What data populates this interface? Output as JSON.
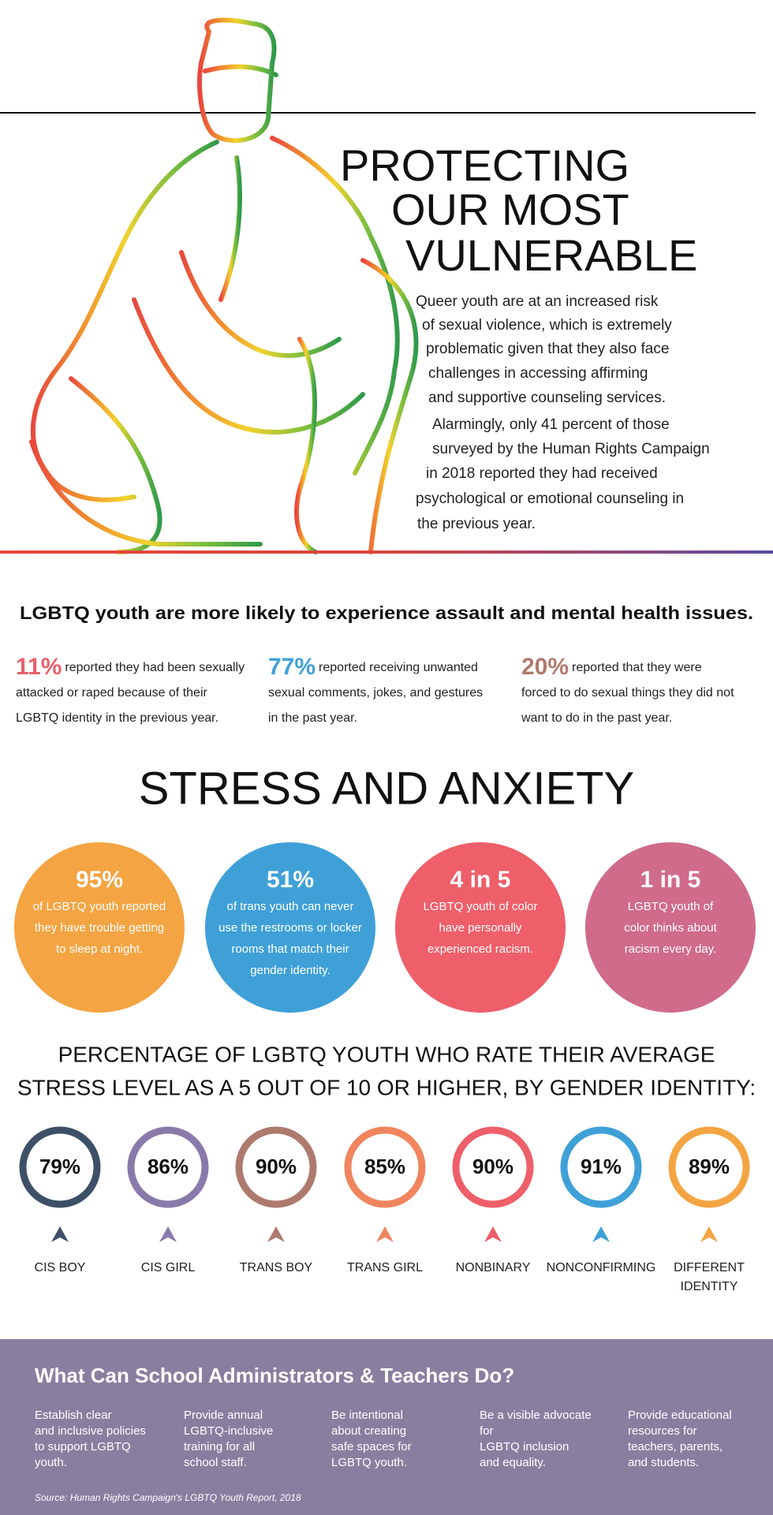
{
  "header": {
    "title_lines": [
      "PROTECTING",
      "OUR MOST",
      "VULNERABLE"
    ],
    "intro_lines": [
      "Queer youth are at an increased risk",
      "of sexual violence, which is extremely",
      "problematic given that they also face",
      "challenges in accessing affirming",
      "and supportive counseling services.",
      "Alarmingly, only 41 percent of those",
      "surveyed by the Human Rights Campaign",
      "in 2018 reported they had received",
      "psychological or emotional counseling in",
      "the previous year."
    ]
  },
  "assault": {
    "heading": "LGBTQ youth are more likely to experience assault and mental health issues.",
    "stats": [
      {
        "value": "11%",
        "lines": [
          "reported they had been sexually",
          "attacked or raped because of their",
          "LGBTQ identity in the previous year."
        ]
      },
      {
        "value": "77%",
        "lines": [
          "reported receiving unwanted",
          "sexual comments, jokes, and gestures",
          "in the past year."
        ]
      },
      {
        "value": "20%",
        "lines": [
          "reported that they were",
          "forced to do sexual things they did not",
          "want to do in the past year."
        ]
      }
    ]
  },
  "stress": {
    "heading": "STRESS AND ANXIETY",
    "circles": [
      {
        "value": "95%",
        "lines": [
          "of LGBTQ youth reported",
          "they have trouble getting",
          "to sleep at night."
        ]
      },
      {
        "value": "51%",
        "lines": [
          "of trans youth can never",
          "use the restrooms or locker",
          "rooms that match their",
          "gender identity."
        ]
      },
      {
        "value": "4 in 5",
        "lines": [
          "LGBTQ youth of color",
          "have personally",
          "experienced racism."
        ]
      },
      {
        "value": "1 in 5",
        "lines": [
          "LGBTQ youth of",
          "color thinks about",
          "racism every day."
        ]
      }
    ]
  },
  "gender": {
    "heading_lines": [
      "PERCENTAGE OF LGBTQ YOUTH WHO RATE THEIR AVERAGE",
      "STRESS LEVEL AS A 5 OUT OF 10 OR HIGHER, BY GENDER IDENTITY:"
    ],
    "items": [
      {
        "value": "79%",
        "label_lines": [
          "CIS BOY"
        ]
      },
      {
        "value": "86%",
        "label_lines": [
          "CIS GIRL"
        ]
      },
      {
        "value": "90%",
        "label_lines": [
          "TRANS BOY"
        ]
      },
      {
        "value": "85%",
        "label_lines": [
          "TRANS GIRL"
        ]
      },
      {
        "value": "90%",
        "label_lines": [
          "NONBINARY"
        ]
      },
      {
        "value": "91%",
        "label_lines": [
          "NONCONFIRMING"
        ]
      },
      {
        "value": "89%",
        "label_lines": [
          "DIFFERENT",
          "IDENTITY"
        ]
      }
    ]
  },
  "actions": {
    "heading": "What Can School Administrators & Teachers Do?",
    "columns": [
      [
        "Establish clear",
        "and inclusive policies",
        "to support LGBTQ",
        "youth."
      ],
      [
        "Provide annual",
        "LGBTQ-inclusive",
        "training for all",
        "school staff."
      ],
      [
        "Be intentional",
        "about creating",
        "safe spaces for",
        "LGBTQ youth."
      ],
      [
        "Be a visible advocate",
        "for",
        "LGBTQ inclusion",
        "and equality."
      ],
      [
        "Provide educational",
        "resources for",
        "teachers, parents,",
        "and students."
      ]
    ],
    "source": "Source: Human Rights Campaign's LGBTQ Youth Report, 2018"
  }
}
